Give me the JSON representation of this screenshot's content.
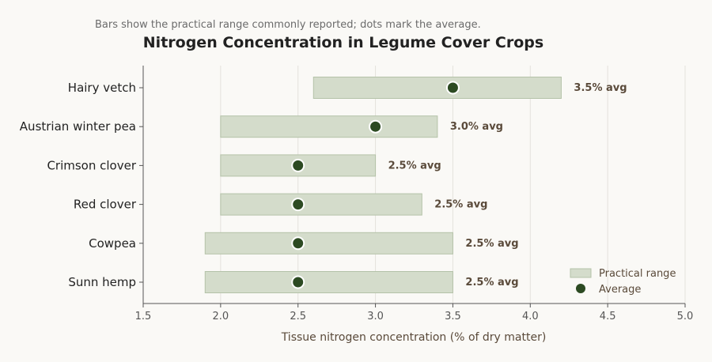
{
  "chart_data": {
    "type": "bar",
    "subtitle": "Bars show the practical range commonly reported; dots mark the average.",
    "title": "Nitrogen Concentration in Legume Cover Crops",
    "xlabel": "Tissue nitrogen concentration (% of dry matter)",
    "ylabel": "",
    "xlim": [
      1.5,
      5.0
    ],
    "xticks": [
      "1.5",
      "2.0",
      "2.5",
      "3.0",
      "3.5",
      "4.0",
      "4.5",
      "5.0"
    ],
    "grid": "vertical",
    "legend_position": "bottom-right",
    "categories": [
      "Hairy vetch",
      "Austrian winter pea",
      "Crimson clover",
      "Red clover",
      "Cowpea",
      "Sunn hemp"
    ],
    "series": [
      {
        "name": "Practical range",
        "type": "range",
        "color": "#d4dccb",
        "low": [
          2.6,
          2.0,
          2.0,
          2.0,
          1.9,
          1.9
        ],
        "high": [
          4.2,
          3.4,
          3.0,
          3.3,
          3.5,
          3.5
        ]
      },
      {
        "name": "Average",
        "type": "point",
        "color": "#2c4a22",
        "values": [
          3.5,
          3.0,
          2.5,
          2.5,
          2.5,
          2.5
        ],
        "labels": [
          "3.5% avg",
          "3.0% avg",
          "2.5% avg",
          "2.5% avg",
          "2.5% avg",
          "2.5% avg"
        ]
      }
    ]
  }
}
